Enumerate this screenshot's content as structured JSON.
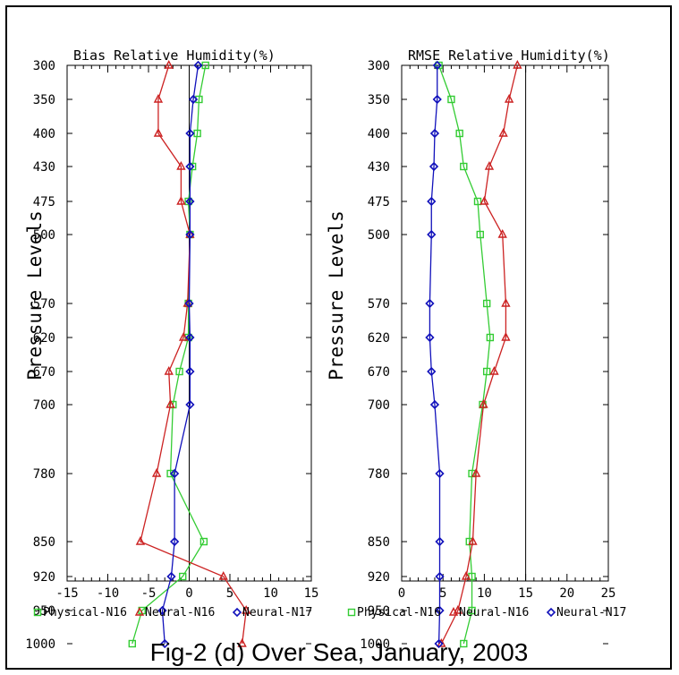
{
  "caption": "Fig-2 (d) Over Sea, January, 2003",
  "legend": [
    "Physical-N16",
    "Neural-N16",
    "Neural-N17"
  ],
  "colors": {
    "Physical-N16": "#33cc33",
    "Neural-N16": "#cc2222",
    "Neural-N17": "#1111bb"
  },
  "chart_data": [
    {
      "type": "line",
      "title": "Bias Relative Humidity(%)",
      "ylabel": "Pressure Levels",
      "xlabel": "",
      "xlim": [
        -15,
        15
      ],
      "xticks": [
        -15,
        -10,
        -5,
        0,
        5,
        10,
        15
      ],
      "ylim": [
        1000,
        300
      ],
      "yticks": [
        300,
        350,
        400,
        430,
        475,
        500,
        570,
        620,
        670,
        700,
        780,
        850,
        920,
        950,
        1000
      ],
      "vline": 0,
      "series": [
        {
          "name": "Physical-N16",
          "marker": "square",
          "points": [
            [
              2,
              300
            ],
            [
              1.2,
              350
            ],
            [
              1,
              400
            ],
            [
              0.4,
              430
            ],
            [
              -0.1,
              475
            ],
            [
              0.1,
              500
            ],
            [
              -0.1,
              570
            ],
            [
              -0.1,
              620
            ],
            [
              -1.2,
              670
            ],
            [
              -2,
              700
            ],
            [
              -2.3,
              780
            ],
            [
              1.8,
              850
            ],
            [
              -0.8,
              920
            ],
            [
              -5.8,
              950
            ],
            [
              -7,
              1000
            ]
          ]
        },
        {
          "name": "Neural-N16",
          "marker": "triangle",
          "points": [
            [
              -2.5,
              300
            ],
            [
              -3.8,
              350
            ],
            [
              -3.8,
              400
            ],
            [
              -1,
              430
            ],
            [
              -1,
              475
            ],
            [
              0.1,
              500
            ],
            [
              -0.2,
              570
            ],
            [
              -0.7,
              620
            ],
            [
              -2.5,
              670
            ],
            [
              -2.3,
              700
            ],
            [
              -4,
              780
            ],
            [
              -6,
              850
            ],
            [
              4.2,
              920
            ],
            [
              7,
              950
            ],
            [
              6.5,
              1000
            ]
          ]
        },
        {
          "name": "Neural-N17",
          "marker": "diamond",
          "points": [
            [
              1.1,
              300
            ],
            [
              0.5,
              350
            ],
            [
              0.1,
              400
            ],
            [
              0.1,
              430
            ],
            [
              0.1,
              475
            ],
            [
              0.1,
              500
            ],
            [
              0,
              570
            ],
            [
              0.1,
              620
            ],
            [
              0.1,
              670
            ],
            [
              0.1,
              700
            ],
            [
              -1.8,
              780
            ],
            [
              -1.8,
              850
            ],
            [
              -2.2,
              920
            ],
            [
              -3.3,
              950
            ],
            [
              -3,
              1000
            ]
          ]
        }
      ]
    },
    {
      "type": "line",
      "title": "RMSE Relative Humidity(%)",
      "ylabel": "Pressure Levels",
      "xlabel": "",
      "xlim": [
        0,
        25
      ],
      "xticks": [
        0,
        5,
        10,
        15,
        20,
        25
      ],
      "ylim": [
        1000,
        300
      ],
      "yticks": [
        300,
        350,
        400,
        430,
        475,
        500,
        570,
        620,
        670,
        700,
        780,
        850,
        920,
        950,
        1000
      ],
      "vline": 15,
      "series": [
        {
          "name": "Physical-N16",
          "marker": "square",
          "points": [
            [
              4.5,
              300
            ],
            [
              6,
              350
            ],
            [
              7,
              400
            ],
            [
              7.5,
              430
            ],
            [
              9.2,
              475
            ],
            [
              9.5,
              500
            ],
            [
              10.3,
              570
            ],
            [
              10.7,
              620
            ],
            [
              10.3,
              670
            ],
            [
              9.8,
              700
            ],
            [
              8.5,
              780
            ],
            [
              8.2,
              850
            ],
            [
              8.5,
              920
            ],
            [
              8.5,
              950
            ],
            [
              7.5,
              1000
            ]
          ]
        },
        {
          "name": "Neural-N16",
          "marker": "triangle",
          "points": [
            [
              14,
              300
            ],
            [
              13,
              350
            ],
            [
              12.3,
              400
            ],
            [
              10.6,
              430
            ],
            [
              10,
              475
            ],
            [
              12.2,
              500
            ],
            [
              12.6,
              570
            ],
            [
              12.6,
              620
            ],
            [
              11.2,
              670
            ],
            [
              9.9,
              700
            ],
            [
              9,
              780
            ],
            [
              8.6,
              850
            ],
            [
              7.8,
              920
            ],
            [
              6.8,
              950
            ],
            [
              4.8,
              1000
            ]
          ]
        },
        {
          "name": "Neural-N17",
          "marker": "diamond",
          "points": [
            [
              4.3,
              300
            ],
            [
              4.3,
              350
            ],
            [
              4,
              400
            ],
            [
              3.9,
              430
            ],
            [
              3.6,
              475
            ],
            [
              3.6,
              500
            ],
            [
              3.4,
              570
            ],
            [
              3.4,
              620
            ],
            [
              3.6,
              670
            ],
            [
              4,
              700
            ],
            [
              4.6,
              780
            ],
            [
              4.6,
              850
            ],
            [
              4.6,
              920
            ],
            [
              4.6,
              950
            ],
            [
              4.5,
              1000
            ]
          ]
        }
      ]
    }
  ]
}
